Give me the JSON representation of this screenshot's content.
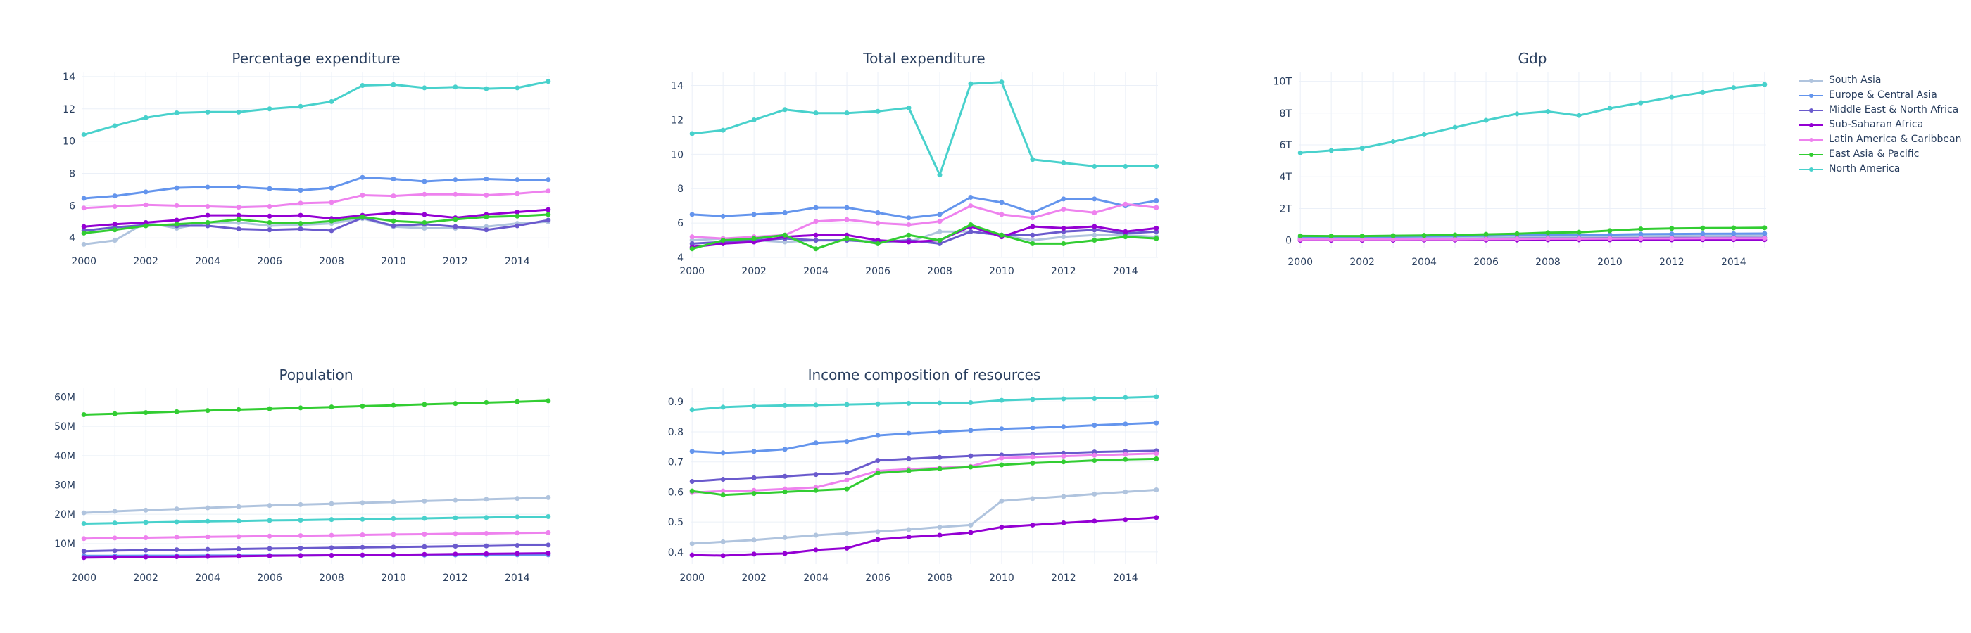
{
  "figure": {
    "legend_position": "top-right",
    "grid": true,
    "font_color": "#2a3f5f"
  },
  "series_colors": {
    "South Asia": "#b0c4de",
    "Europe & Central Asia": "#6495ed",
    "Middle East & North Africa": "#6a5acd",
    "Sub-Saharan Africa": "#9400d3",
    "Latin America & Caribbean": "#ee82ee",
    "East Asia & Pacific": "#32cd32",
    "North America": "#48d1cc"
  },
  "legend": {
    "items": [
      "South Asia",
      "Europe & Central Asia",
      "Middle East & North Africa",
      "Sub-Saharan Africa",
      "Latin America & Caribbean",
      "East Asia & Pacific",
      "North America"
    ]
  },
  "chart_data": [
    {
      "type": "line",
      "title": "Percentage expenditure",
      "x": [
        2000,
        2001,
        2002,
        2003,
        2004,
        2005,
        2006,
        2007,
        2008,
        2009,
        2010,
        2011,
        2012,
        2013,
        2014,
        2015
      ],
      "xticks": [
        2000,
        2002,
        2004,
        2006,
        2008,
        2010,
        2012,
        2014
      ],
      "xtick_labels": [
        "2000",
        "2002",
        "2004",
        "2006",
        "2008",
        "2010",
        "2012",
        "2014"
      ],
      "ylim": [
        3.4,
        14.3
      ],
      "yticks": [
        4,
        6,
        8,
        10,
        12,
        14
      ],
      "ytick_labels": [
        "4",
        "6",
        "8",
        "10",
        "12",
        "14"
      ],
      "series": [
        {
          "name": "South Asia",
          "values": [
            3.6,
            3.85,
            4.95,
            4.6,
            4.95,
            4.95,
            4.75,
            4.8,
            4.9,
            5.2,
            4.7,
            4.6,
            4.6,
            4.7,
            4.9,
            5.0
          ]
        },
        {
          "name": "Europe & Central Asia",
          "values": [
            6.45,
            6.6,
            6.85,
            7.1,
            7.15,
            7.15,
            7.05,
            6.95,
            7.1,
            7.75,
            7.65,
            7.5,
            7.6,
            7.65,
            7.6,
            7.6
          ]
        },
        {
          "name": "Middle East & North Africa",
          "values": [
            4.45,
            4.65,
            4.8,
            4.75,
            4.75,
            4.55,
            4.5,
            4.55,
            4.45,
            5.25,
            4.75,
            4.85,
            4.7,
            4.5,
            4.75,
            5.1
          ]
        },
        {
          "name": "Sub-Saharan Africa",
          "values": [
            4.7,
            4.85,
            4.95,
            5.1,
            5.4,
            5.4,
            5.35,
            5.4,
            5.2,
            5.4,
            5.55,
            5.45,
            5.25,
            5.45,
            5.6,
            5.75
          ]
        },
        {
          "name": "Latin America & Caribbean",
          "values": [
            5.85,
            5.95,
            6.05,
            6.0,
            5.95,
            5.9,
            5.95,
            6.15,
            6.2,
            6.65,
            6.6,
            6.7,
            6.7,
            6.65,
            6.75,
            6.9
          ]
        },
        {
          "name": "East Asia & Pacific",
          "values": [
            4.3,
            4.5,
            4.75,
            4.85,
            4.95,
            5.15,
            4.95,
            4.9,
            5.05,
            5.3,
            5.05,
            4.95,
            5.15,
            5.3,
            5.35,
            5.45
          ]
        },
        {
          "name": "North America",
          "values": [
            10.4,
            10.95,
            11.45,
            11.75,
            11.8,
            11.8,
            12.0,
            12.15,
            12.45,
            13.45,
            13.5,
            13.3,
            13.35,
            13.25,
            13.3,
            13.7
          ]
        }
      ]
    },
    {
      "type": "line",
      "title": "Total expenditure",
      "x": [
        2000,
        2001,
        2002,
        2003,
        2004,
        2005,
        2006,
        2007,
        2008,
        2009,
        2010,
        2011,
        2012,
        2013,
        2014,
        2015
      ],
      "xticks": [
        2000,
        2002,
        2004,
        2006,
        2008,
        2010,
        2012,
        2014
      ],
      "xtick_labels": [
        "2000",
        "2002",
        "2004",
        "2006",
        "2008",
        "2010",
        "2012",
        "2014"
      ],
      "ylim": [
        4,
        14.8
      ],
      "yticks": [
        4,
        6,
        8,
        10,
        12,
        14
      ],
      "ytick_labels": [
        "4",
        "6",
        "8",
        "10",
        "12",
        "14"
      ],
      "series": [
        {
          "name": "South Asia",
          "values": [
            5.0,
            5.1,
            5.0,
            4.9,
            5.0,
            5.0,
            4.9,
            4.9,
            5.5,
            5.5,
            5.3,
            5.0,
            5.2,
            5.3,
            5.3,
            5.2
          ]
        },
        {
          "name": "Europe & Central Asia",
          "values": [
            6.5,
            6.4,
            6.5,
            6.6,
            6.9,
            6.9,
            6.6,
            6.3,
            6.5,
            7.5,
            7.2,
            6.6,
            7.4,
            7.4,
            7.0,
            7.3
          ]
        },
        {
          "name": "Middle East & North Africa",
          "values": [
            4.8,
            4.9,
            5.0,
            5.1,
            5.0,
            5.0,
            4.9,
            5.0,
            4.8,
            5.5,
            5.3,
            5.3,
            5.5,
            5.6,
            5.4,
            5.5
          ]
        },
        {
          "name": "Sub-Saharan Africa",
          "values": [
            4.6,
            4.8,
            4.9,
            5.2,
            5.3,
            5.3,
            5.0,
            4.9,
            5.0,
            5.8,
            5.2,
            5.8,
            5.7,
            5.8,
            5.5,
            5.7
          ]
        },
        {
          "name": "Latin America & Caribbean",
          "values": [
            5.2,
            5.1,
            5.2,
            5.3,
            6.1,
            6.2,
            6.0,
            5.9,
            6.1,
            7.0,
            6.5,
            6.3,
            6.8,
            6.6,
            7.1,
            6.9
          ]
        },
        {
          "name": "East Asia & Pacific",
          "values": [
            4.5,
            5.0,
            5.1,
            5.3,
            4.5,
            5.1,
            4.8,
            5.3,
            5.0,
            5.9,
            5.3,
            4.8,
            4.8,
            5.0,
            5.2,
            5.1
          ]
        },
        {
          "name": "North America",
          "values": [
            11.2,
            11.4,
            12.0,
            12.6,
            12.4,
            12.4,
            12.5,
            12.7,
            8.8,
            14.1,
            14.2,
            9.7,
            9.5,
            9.3,
            9.3,
            9.3
          ]
        }
      ]
    },
    {
      "type": "line",
      "title": "Gdp",
      "x": [
        2000,
        2001,
        2002,
        2003,
        2004,
        2005,
        2006,
        2007,
        2008,
        2009,
        2010,
        2011,
        2012,
        2013,
        2014,
        2015
      ],
      "xticks": [
        2000,
        2002,
        2004,
        2006,
        2008,
        2010,
        2012,
        2014
      ],
      "xtick_labels": [
        "2000",
        "2002",
        "2004",
        "2006",
        "2008",
        "2010",
        "2012",
        "2014"
      ],
      "ylim": [
        -500000000000,
        10600000000000
      ],
      "yticks": [
        0,
        2000000000000,
        4000000000000,
        6000000000000,
        8000000000000,
        10000000000000
      ],
      "ytick_labels": [
        "0",
        "2T",
        "4T",
        "6T",
        "8T",
        "10T"
      ],
      "series": [
        {
          "name": "South Asia",
          "values": [
            150000000000,
            150000000000,
            160000000000,
            170000000000,
            180000000000,
            190000000000,
            200000000000,
            210000000000,
            220000000000,
            230000000000,
            250000000000,
            260000000000,
            270000000000,
            280000000000,
            290000000000,
            300000000000
          ]
        },
        {
          "name": "Europe & Central Asia",
          "values": [
            200000000000,
            200000000000,
            210000000000,
            230000000000,
            250000000000,
            270000000000,
            290000000000,
            330000000000,
            360000000000,
            340000000000,
            360000000000,
            390000000000,
            400000000000,
            410000000000,
            420000000000,
            430000000000
          ]
        },
        {
          "name": "Middle East & North Africa",
          "values": [
            70000000000,
            70000000000,
            70000000000,
            80000000000,
            80000000000,
            90000000000,
            100000000000,
            110000000000,
            120000000000,
            120000000000,
            130000000000,
            140000000000,
            150000000000,
            150000000000,
            160000000000,
            160000000000
          ]
        },
        {
          "name": "Sub-Saharan Africa",
          "values": [
            10000000000,
            10000000000,
            10000000000,
            10000000000,
            20000000000,
            20000000000,
            20000000000,
            20000000000,
            30000000000,
            30000000000,
            30000000000,
            30000000000,
            30000000000,
            40000000000,
            40000000000,
            40000000000
          ]
        },
        {
          "name": "Latin America & Caribbean",
          "values": [
            60000000000,
            60000000000,
            60000000000,
            60000000000,
            70000000000,
            70000000000,
            80000000000,
            90000000000,
            100000000000,
            100000000000,
            110000000000,
            120000000000,
            120000000000,
            130000000000,
            130000000000,
            130000000000
          ]
        },
        {
          "name": "East Asia & Pacific",
          "values": [
            280000000000,
            270000000000,
            270000000000,
            290000000000,
            310000000000,
            340000000000,
            380000000000,
            420000000000,
            480000000000,
            510000000000,
            610000000000,
            710000000000,
            750000000000,
            770000000000,
            780000000000,
            790000000000
          ]
        },
        {
          "name": "North America",
          "values": [
            5500000000000,
            5650000000000,
            5800000000000,
            6200000000000,
            6650000000000,
            7100000000000,
            7550000000000,
            7950000000000,
            8100000000000,
            7850000000000,
            8300000000000,
            8650000000000,
            9000000000000,
            9300000000000,
            9600000000000,
            9800000000000
          ]
        }
      ]
    },
    {
      "type": "line",
      "title": "Population",
      "x": [
        2000,
        2001,
        2002,
        2003,
        2004,
        2005,
        2006,
        2007,
        2008,
        2009,
        2010,
        2011,
        2012,
        2013,
        2014,
        2015
      ],
      "xticks": [
        2000,
        2002,
        2004,
        2006,
        2008,
        2010,
        2012,
        2014
      ],
      "xtick_labels": [
        "2000",
        "2002",
        "2004",
        "2006",
        "2008",
        "2010",
        "2012",
        "2014"
      ],
      "ylim": [
        3000000,
        63000000
      ],
      "yticks": [
        10000000,
        20000000,
        30000000,
        40000000,
        50000000,
        60000000
      ],
      "ytick_labels": [
        "10M",
        "20M",
        "30M",
        "40M",
        "50M",
        "60M"
      ],
      "series": [
        {
          "name": "South Asia",
          "values": [
            20500000,
            21000000,
            21400000,
            21800000,
            22200000,
            22600000,
            23000000,
            23300000,
            23600000,
            23900000,
            24200000,
            24500000,
            24800000,
            25100000,
            25400000,
            25700000
          ]
        },
        {
          "name": "Europe & Central Asia",
          "values": [
            5800000,
            5800000,
            5850000,
            5850000,
            5900000,
            5900000,
            5950000,
            5950000,
            6000000,
            6000000,
            6050000,
            6050000,
            6100000,
            6100000,
            6150000,
            6150000
          ]
        },
        {
          "name": "Middle East & North Africa",
          "values": [
            7400000,
            7600000,
            7750000,
            7900000,
            8000000,
            8150000,
            8300000,
            8400000,
            8550000,
            8700000,
            8800000,
            8950000,
            9100000,
            9200000,
            9350000,
            9500000
          ]
        },
        {
          "name": "Sub-Saharan Africa",
          "values": [
            5200000,
            5300000,
            5400000,
            5500000,
            5600000,
            5700000,
            5800000,
            5900000,
            6000000,
            6100000,
            6200000,
            6300000,
            6400000,
            6500000,
            6600000,
            6700000
          ]
        },
        {
          "name": "Latin America & Caribbean",
          "values": [
            11700000,
            11900000,
            12000000,
            12150000,
            12300000,
            12400000,
            12550000,
            12700000,
            12800000,
            12950000,
            13100000,
            13200000,
            13350000,
            13450000,
            13600000,
            13700000
          ]
        },
        {
          "name": "East Asia & Pacific",
          "values": [
            54000000,
            54300000,
            54700000,
            55000000,
            55400000,
            55700000,
            56000000,
            56300000,
            56600000,
            56900000,
            57200000,
            57500000,
            57800000,
            58100000,
            58400000,
            58700000
          ]
        },
        {
          "name": "North America",
          "values": [
            16800000,
            17000000,
            17200000,
            17400000,
            17600000,
            17700000,
            17900000,
            18000000,
            18200000,
            18300000,
            18500000,
            18600000,
            18800000,
            18900000,
            19100000,
            19200000
          ]
        }
      ]
    },
    {
      "type": "line",
      "title": "Income composition of resources",
      "x": [
        2000,
        2001,
        2002,
        2003,
        2004,
        2005,
        2006,
        2007,
        2008,
        2009,
        2010,
        2011,
        2012,
        2013,
        2014,
        2015
      ],
      "xticks": [
        2000,
        2002,
        2004,
        2006,
        2008,
        2010,
        2012,
        2014
      ],
      "xtick_labels": [
        "2000",
        "2002",
        "2004",
        "2006",
        "2008",
        "2010",
        "2012",
        "2014"
      ],
      "ylim": [
        0.36,
        0.945
      ],
      "yticks": [
        0.4,
        0.5,
        0.6,
        0.7,
        0.8,
        0.9
      ],
      "ytick_labels": [
        "0.4",
        "0.5",
        "0.6",
        "0.7",
        "0.8",
        "0.9"
      ],
      "series": [
        {
          "name": "South Asia",
          "values": [
            0.428,
            0.434,
            0.44,
            0.448,
            0.456,
            0.462,
            0.468,
            0.475,
            0.483,
            0.49,
            0.57,
            0.578,
            0.585,
            0.593,
            0.6,
            0.607
          ]
        },
        {
          "name": "Europe & Central Asia",
          "values": [
            0.735,
            0.73,
            0.735,
            0.742,
            0.763,
            0.768,
            0.788,
            0.795,
            0.8,
            0.805,
            0.81,
            0.813,
            0.817,
            0.822,
            0.826,
            0.83
          ]
        },
        {
          "name": "Middle East & North Africa",
          "values": [
            0.635,
            0.642,
            0.647,
            0.652,
            0.658,
            0.663,
            0.705,
            0.71,
            0.715,
            0.72,
            0.723,
            0.726,
            0.729,
            0.733,
            0.735,
            0.737
          ]
        },
        {
          "name": "Sub-Saharan Africa",
          "values": [
            0.39,
            0.388,
            0.393,
            0.395,
            0.407,
            0.413,
            0.442,
            0.45,
            0.456,
            0.465,
            0.483,
            0.49,
            0.497,
            0.503,
            0.508,
            0.515
          ]
        },
        {
          "name": "Latin America & Caribbean",
          "values": [
            0.598,
            0.603,
            0.605,
            0.61,
            0.615,
            0.64,
            0.67,
            0.676,
            0.68,
            0.685,
            0.713,
            0.716,
            0.719,
            0.722,
            0.725,
            0.728
          ]
        },
        {
          "name": "East Asia & Pacific",
          "values": [
            0.603,
            0.59,
            0.595,
            0.6,
            0.605,
            0.61,
            0.663,
            0.67,
            0.677,
            0.683,
            0.69,
            0.696,
            0.7,
            0.705,
            0.708,
            0.71
          ]
        },
        {
          "name": "North America",
          "values": [
            0.873,
            0.882,
            0.886,
            0.888,
            0.889,
            0.891,
            0.893,
            0.895,
            0.896,
            0.897,
            0.905,
            0.908,
            0.91,
            0.911,
            0.914,
            0.917
          ]
        }
      ]
    }
  ]
}
